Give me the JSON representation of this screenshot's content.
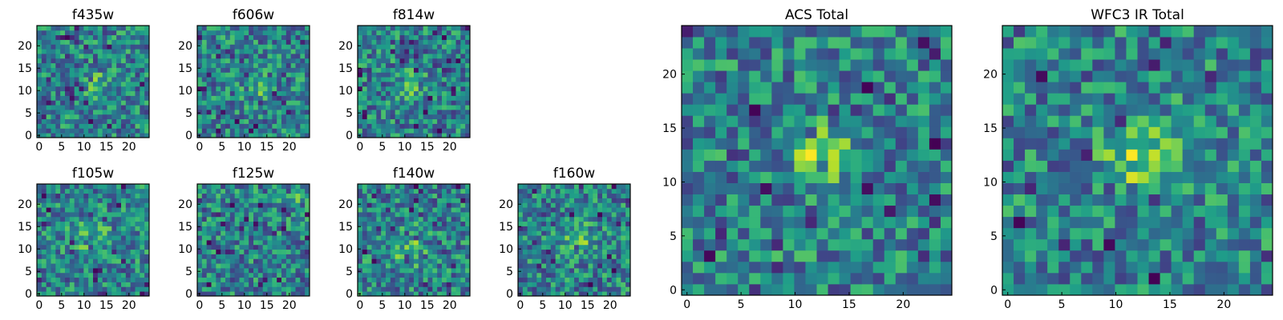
{
  "chart_data": [
    {
      "type": "heatmap",
      "title": "f435w",
      "xticks": [
        "0",
        "5",
        "10",
        "15",
        "20"
      ],
      "yticks": [
        "0",
        "5",
        "10",
        "15",
        "20"
      ],
      "xlim": [
        0,
        24
      ],
      "ylim": [
        0,
        24
      ],
      "grid_size": 24,
      "colormap": "viridis",
      "seed": 11,
      "blob": {
        "x": 12,
        "y": 11,
        "r": 3,
        "strength": 0.18
      }
    },
    {
      "type": "heatmap",
      "title": "f606w",
      "xticks": [
        "0",
        "5",
        "10",
        "15",
        "20"
      ],
      "yticks": [
        "0",
        "5",
        "10",
        "15",
        "20"
      ],
      "xlim": [
        0,
        24
      ],
      "ylim": [
        0,
        24
      ],
      "grid_size": 24,
      "colormap": "viridis",
      "seed": 23,
      "blob": {
        "x": 12,
        "y": 11,
        "r": 2.5,
        "strength": 0.32
      }
    },
    {
      "type": "heatmap",
      "title": "f814w",
      "xticks": [
        "0",
        "5",
        "10",
        "15",
        "20"
      ],
      "yticks": [
        "0",
        "5",
        "10",
        "15",
        "20"
      ],
      "xlim": [
        0,
        24
      ],
      "ylim": [
        0,
        24
      ],
      "grid_size": 24,
      "colormap": "viridis",
      "seed": 37,
      "blob": {
        "x": 11,
        "y": 11,
        "r": 2.5,
        "strength": 0.25
      }
    },
    {
      "type": "heatmap",
      "title": "f105w",
      "xticks": [
        "0",
        "5",
        "10",
        "15",
        "20"
      ],
      "yticks": [
        "0",
        "5",
        "10",
        "15",
        "20"
      ],
      "xlim": [
        0,
        24
      ],
      "ylim": [
        0,
        24
      ],
      "grid_size": 24,
      "colormap": "viridis",
      "seed": 41,
      "blob": {
        "x": 11,
        "y": 12,
        "r": 4,
        "strength": 0.2
      }
    },
    {
      "type": "heatmap",
      "title": "f125w",
      "xticks": [
        "0",
        "5",
        "10",
        "15",
        "20"
      ],
      "yticks": [
        "0",
        "5",
        "10",
        "15",
        "20"
      ],
      "xlim": [
        0,
        24
      ],
      "ylim": [
        0,
        24
      ],
      "grid_size": 24,
      "colormap": "viridis",
      "seed": 53,
      "blob": {
        "x": 20,
        "y": 22,
        "r": 3,
        "strength": 0.2
      }
    },
    {
      "type": "heatmap",
      "title": "f140w",
      "xticks": [
        "0",
        "5",
        "10",
        "15",
        "20"
      ],
      "yticks": [
        "0",
        "5",
        "10",
        "15",
        "20"
      ],
      "xlim": [
        0,
        24
      ],
      "ylim": [
        0,
        24
      ],
      "grid_size": 24,
      "colormap": "viridis",
      "seed": 67,
      "blob": {
        "x": 10,
        "y": 10,
        "r": 4,
        "strength": 0.22
      }
    },
    {
      "type": "heatmap",
      "title": "f160w",
      "xticks": [
        "0",
        "5",
        "10",
        "15",
        "20"
      ],
      "yticks": [
        "0",
        "5",
        "10",
        "15",
        "20"
      ],
      "xlim": [
        0,
        24
      ],
      "ylim": [
        0,
        24
      ],
      "grid_size": 24,
      "colormap": "viridis",
      "seed": 79,
      "blob": {
        "x": 12,
        "y": 12,
        "r": 3,
        "strength": 0.3
      }
    },
    {
      "type": "heatmap",
      "title": "ACS Total",
      "xticks": [
        "0",
        "5",
        "10",
        "15",
        "20"
      ],
      "yticks": [
        "0",
        "5",
        "10",
        "15",
        "20"
      ],
      "xlim": [
        0,
        24
      ],
      "ylim": [
        0,
        24
      ],
      "grid_size": 24,
      "colormap": "viridis",
      "seed": 97,
      "blob": {
        "x": 12,
        "y": 12,
        "r": 2.5,
        "strength": 0.4
      }
    },
    {
      "type": "heatmap",
      "title": "WFC3 IR Total",
      "xticks": [
        "0",
        "5",
        "10",
        "15",
        "20"
      ],
      "yticks": [
        "0",
        "5",
        "10",
        "15",
        "20"
      ],
      "xlim": [
        0,
        24
      ],
      "ylim": [
        0,
        24
      ],
      "grid_size": 24,
      "colormap": "viridis",
      "seed": 113,
      "blob": {
        "x": 12,
        "y": 12,
        "r": 3,
        "strength": 0.4
      }
    }
  ]
}
